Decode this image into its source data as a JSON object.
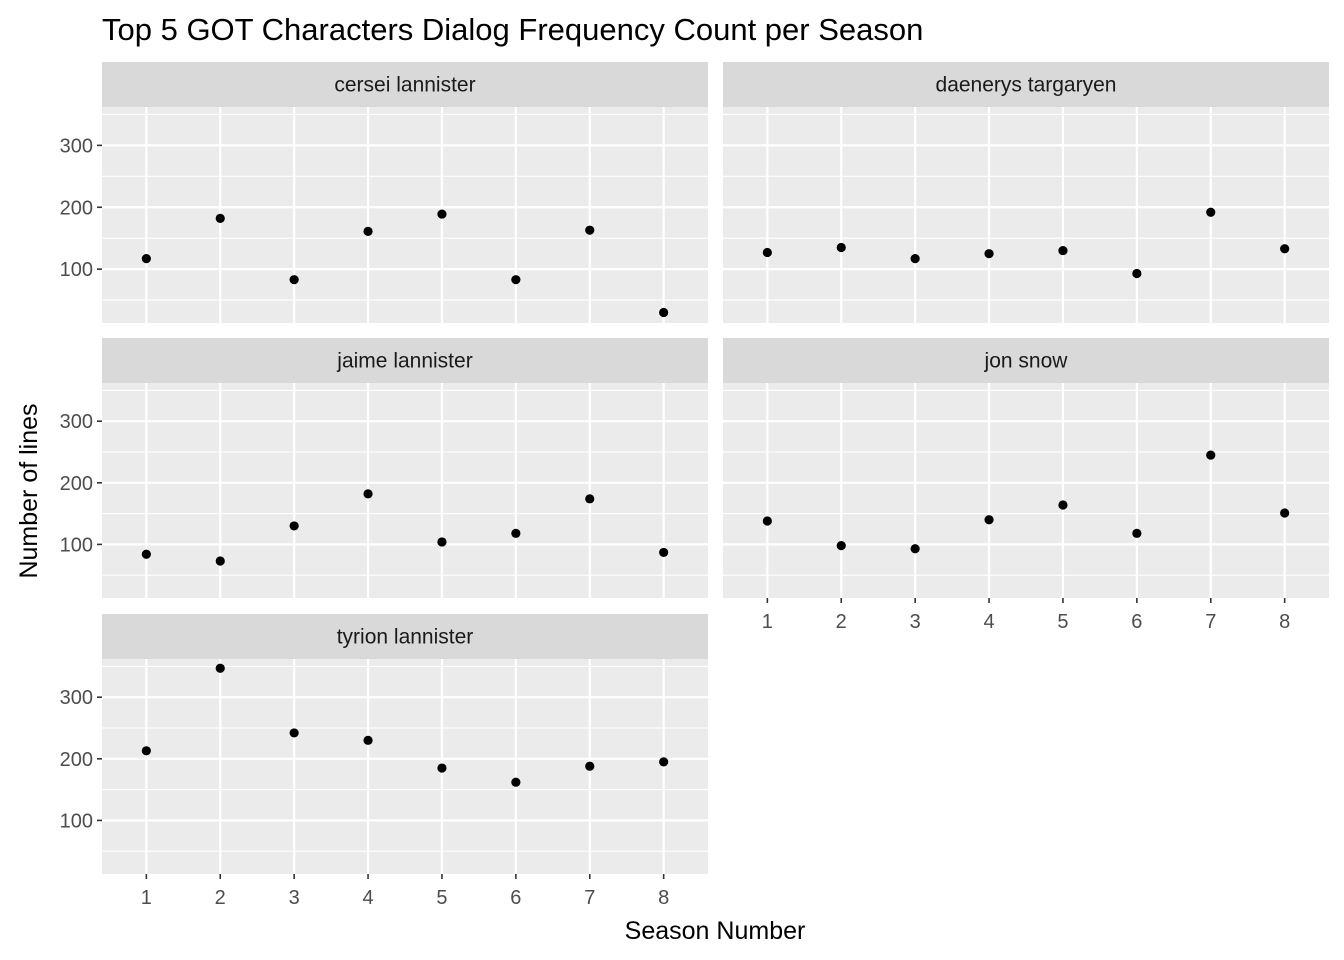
{
  "chart_data": {
    "type": "scatter",
    "title": "Top 5 GOT Characters Dialog Frequency Count per Season",
    "xlabel": "Season Number",
    "ylabel": "Number of lines",
    "x_ticks": [
      1,
      2,
      3,
      4,
      5,
      6,
      7,
      8
    ],
    "y_ticks": [
      100,
      200,
      300
    ],
    "xlim": [
      0.4,
      8.6
    ],
    "ylim": [
      13,
      362
    ],
    "grid": true,
    "colors": {
      "panel_bg": "#ebebeb",
      "strip_bg": "#d9d9d9",
      "grid": "#ffffff",
      "point": "#000000",
      "tick_mark": "#333333"
    },
    "panels": [
      {
        "name": "cersei lannister",
        "x": [
          1,
          2,
          3,
          4,
          5,
          6,
          7,
          8
        ],
        "values": [
          117,
          182,
          83,
          161,
          189,
          83,
          163,
          30
        ]
      },
      {
        "name": "daenerys targaryen",
        "x": [
          1,
          2,
          3,
          4,
          5,
          6,
          7,
          8
        ],
        "values": [
          127,
          135,
          117,
          125,
          130,
          93,
          192,
          133
        ]
      },
      {
        "name": "jaime lannister",
        "x": [
          1,
          2,
          3,
          4,
          5,
          6,
          7,
          8
        ],
        "values": [
          84,
          73,
          130,
          182,
          104,
          118,
          174,
          87
        ]
      },
      {
        "name": "jon snow",
        "x": [
          1,
          2,
          3,
          4,
          5,
          6,
          7,
          8
        ],
        "values": [
          138,
          98,
          93,
          140,
          164,
          118,
          245,
          151
        ]
      },
      {
        "name": "tyrion lannister",
        "x": [
          1,
          2,
          3,
          4,
          5,
          6,
          7,
          8
        ],
        "values": [
          213,
          347,
          242,
          230,
          185,
          162,
          188,
          195
        ]
      }
    ]
  }
}
